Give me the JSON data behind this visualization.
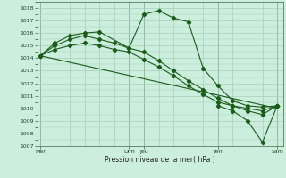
{
  "background_color": "#cceedd",
  "grid_color": "#aaccbb",
  "line_color": "#1a5c1a",
  "xlabel": "Pression niveau de la mer( hPa )",
  "ylim": [
    1007,
    1018.5
  ],
  "yticks": [
    1007,
    1008,
    1009,
    1010,
    1011,
    1012,
    1013,
    1014,
    1015,
    1016,
    1017,
    1018
  ],
  "vline_positions": [
    0,
    3.0,
    3.5,
    6.0,
    8.0
  ],
  "xtick_major": [
    0,
    3.0,
    3.5,
    6.0,
    8.0
  ],
  "xtick_labels": [
    "Mer",
    "Dim",
    "Jeu",
    "Ven",
    "Sam"
  ],
  "xlim": [
    -0.1,
    8.2
  ],
  "series1_x": [
    0,
    0.5,
    1.0,
    1.5,
    2.0,
    3.0,
    3.5,
    4.0,
    4.5,
    5.0,
    5.5,
    6.0,
    6.5,
    7.0,
    7.5,
    8.0
  ],
  "series1_y": [
    1014.2,
    1015.2,
    1015.8,
    1016.0,
    1016.1,
    1014.8,
    1017.5,
    1017.8,
    1017.2,
    1016.9,
    1013.2,
    1011.8,
    1010.6,
    1010.2,
    1010.1,
    1010.2
  ],
  "series2_x": [
    0,
    0.5,
    1.0,
    1.5,
    2.0,
    2.5,
    3.0,
    3.5,
    4.0,
    4.5,
    5.0,
    5.5,
    6.0,
    6.5,
    7.0,
    7.5,
    8.0
  ],
  "series2_y": [
    1014.2,
    1015.0,
    1015.5,
    1015.8,
    1015.5,
    1015.2,
    1014.8,
    1014.5,
    1013.8,
    1013.0,
    1012.2,
    1011.5,
    1010.8,
    1010.2,
    1009.8,
    1009.5,
    1010.2
  ],
  "series3_x": [
    0,
    8.0
  ],
  "series3_y": [
    1014.2,
    1010.0
  ],
  "series4_x": [
    0,
    0.5,
    1.0,
    1.5,
    2.0,
    2.5,
    3.0,
    3.5,
    4.0,
    4.5,
    5.0,
    5.5,
    6.0,
    6.5,
    7.0,
    7.5,
    8.0
  ],
  "series4_y": [
    1014.2,
    1014.7,
    1015.0,
    1015.2,
    1015.0,
    1014.7,
    1014.5,
    1013.9,
    1013.3,
    1012.6,
    1011.8,
    1011.1,
    1010.5,
    1010.2,
    1010.0,
    1009.8,
    1010.2
  ],
  "series5_x": [
    6.0,
    6.5,
    7.0,
    7.5,
    8.0
  ],
  "series5_y": [
    1010.2,
    1009.8,
    1009.0,
    1007.3,
    1010.2
  ]
}
